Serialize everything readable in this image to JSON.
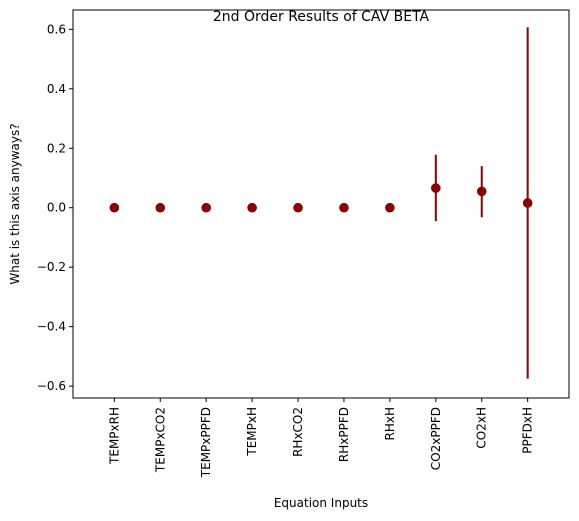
{
  "colors": {
    "point": "#8b0000",
    "errorbar": "#8b0000",
    "axis": "#000000"
  },
  "chart_data": {
    "type": "scatter",
    "title": "2nd Order Results of CAV BETA",
    "xlabel": "Equation Inputs",
    "ylabel": "What is this axis anyways?",
    "categories": [
      "TEMPxRH",
      "TEMPxCO2",
      "TEMPxPPFD",
      "TEMPxH",
      "RHxCO2",
      "RHxPPFD",
      "RHxH",
      "CO2xPPFD",
      "CO2xH",
      "PPFDxH"
    ],
    "values": [
      0.0,
      0.0,
      0.0,
      0.0,
      0.0,
      0.0,
      0.0,
      0.066,
      0.055,
      0.016
    ],
    "error_low": [
      0.0,
      0.0,
      0.0,
      0.0,
      0.0,
      0.0,
      0.0,
      -0.045,
      -0.032,
      -0.575
    ],
    "error_high": [
      0.0,
      0.0,
      0.0,
      0.0,
      0.0,
      0.0,
      0.0,
      0.178,
      0.14,
      0.607
    ],
    "ylim": [
      -0.64,
      0.665
    ],
    "yticks": [
      -0.6,
      -0.4,
      -0.2,
      0.0,
      0.2,
      0.4,
      0.6
    ],
    "ytick_labels": [
      "−0.6",
      "−0.4",
      "−0.2",
      "0.0",
      "0.2",
      "0.4",
      "0.6"
    ],
    "grid": false,
    "legend": null
  }
}
